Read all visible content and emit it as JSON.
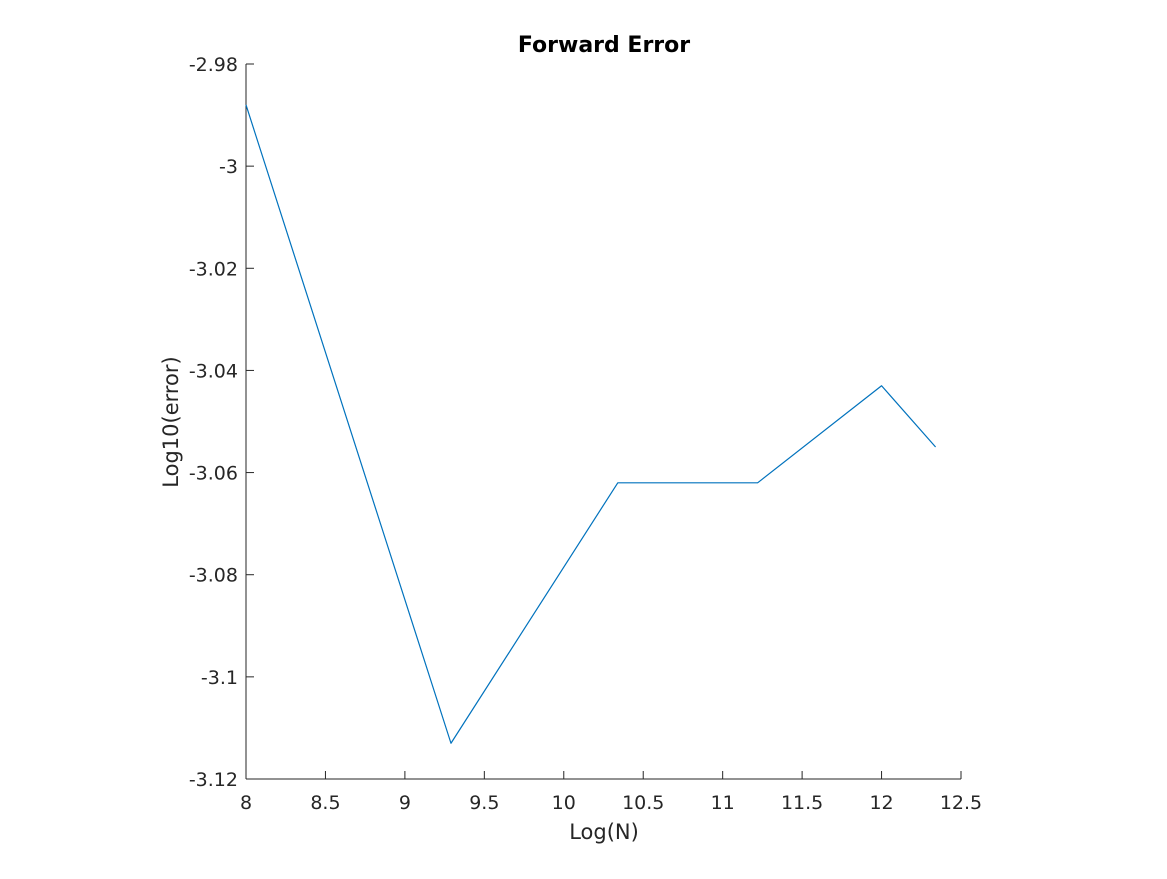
{
  "chart_data": {
    "type": "line",
    "title": "Forward Error",
    "xlabel": "Log(N)",
    "ylabel": "Log10(error)",
    "xlim": [
      8,
      12.5
    ],
    "ylim": [
      -3.12,
      -2.98
    ],
    "xticks": [
      8,
      8.5,
      9,
      9.5,
      10,
      10.5,
      11,
      11.5,
      12,
      12.5
    ],
    "xtick_labels": [
      "8",
      "8.5",
      "9",
      "9.5",
      "10",
      "10.5",
      "11",
      "11.5",
      "12",
      "12.5"
    ],
    "yticks": [
      -2.98,
      -3,
      -3.02,
      -3.04,
      -3.06,
      -3.08,
      -3.1,
      -3.12
    ],
    "ytick_labels": [
      "-2.98",
      "-3",
      "-3.02",
      "-3.04",
      "-3.06",
      "-3.08",
      "-3.1",
      "-3.12"
    ],
    "grid": false,
    "series": [
      {
        "color": "#0072bd",
        "x": [
          8,
          9.29,
          10.34,
          11.22,
          12,
          12.34
        ],
        "y": [
          -2.988,
          -3.113,
          -3.062,
          -3.062,
          -3.043,
          -3.055
        ]
      }
    ]
  }
}
